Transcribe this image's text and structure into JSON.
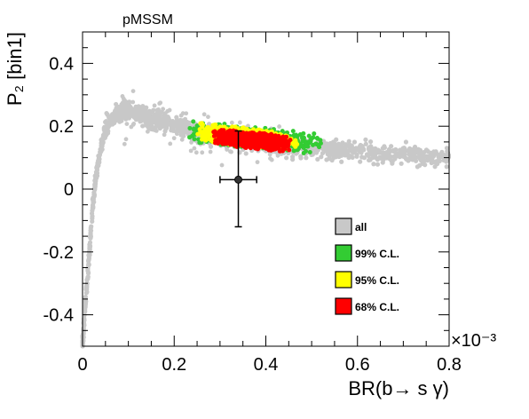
{
  "chart_data": {
    "type": "scatter",
    "title": "pMSSM",
    "xlabel": "BR(b→ s γ)",
    "ylabel": "P₂ [bin1]",
    "x_multiplier": "×10⁻³",
    "xlim": [
      0,
      0.8
    ],
    "ylim": [
      -0.5,
      0.5
    ],
    "x_ticks": [
      "0",
      "0.2",
      "0.4",
      "0.6",
      "0.8"
    ],
    "y_ticks": [
      "-0.4",
      "-0.2",
      "0",
      "0.2",
      "0.4"
    ],
    "grid": false,
    "legend_position": "bottom-right",
    "series": [
      {
        "name": "all",
        "color": "#c8c8c8",
        "curve": [
          [
            0.0,
            -0.5
          ],
          [
            0.005,
            -0.38
          ],
          [
            0.01,
            -0.3
          ],
          [
            0.015,
            -0.2
          ],
          [
            0.02,
            -0.1
          ],
          [
            0.025,
            -0.02
          ],
          [
            0.03,
            0.05
          ],
          [
            0.04,
            0.13
          ],
          [
            0.05,
            0.19
          ],
          [
            0.06,
            0.22
          ],
          [
            0.08,
            0.24
          ],
          [
            0.1,
            0.245
          ],
          [
            0.12,
            0.24
          ],
          [
            0.15,
            0.225
          ],
          [
            0.2,
            0.2
          ],
          [
            0.25,
            0.18
          ],
          [
            0.3,
            0.165
          ],
          [
            0.35,
            0.155
          ],
          [
            0.4,
            0.145
          ],
          [
            0.45,
            0.135
          ],
          [
            0.5,
            0.13
          ],
          [
            0.55,
            0.125
          ],
          [
            0.6,
            0.12
          ],
          [
            0.65,
            0.115
          ],
          [
            0.7,
            0.11
          ],
          [
            0.75,
            0.105
          ],
          [
            0.8,
            0.1
          ]
        ]
      },
      {
        "name": "99% C.L.",
        "color": "#33cc33",
        "center": [
          0.37,
          0.165
        ],
        "spread": [
          0.15,
          0.035
        ],
        "slope": -0.15
      },
      {
        "name": "95% C.L.",
        "color": "#ffff00",
        "center": [
          0.36,
          0.165
        ],
        "spread": [
          0.11,
          0.03
        ],
        "slope": -0.15
      },
      {
        "name": "68% C.L.",
        "color": "#ff0000",
        "center": [
          0.37,
          0.155
        ],
        "spread": [
          0.085,
          0.026
        ],
        "slope": -0.15
      }
    ],
    "measurement": {
      "x": 0.34,
      "y": 0.03,
      "x_err": 0.04,
      "y_err_low": 0.15,
      "y_err_high": 0.155
    }
  },
  "legend": [
    {
      "label": "all",
      "color": "#c8c8c8"
    },
    {
      "label": "99% C.L.",
      "color": "#33cc33"
    },
    {
      "label": "95% C.L.",
      "color": "#ffff00"
    },
    {
      "label": "68% C.L.",
      "color": "#ff0000"
    }
  ]
}
